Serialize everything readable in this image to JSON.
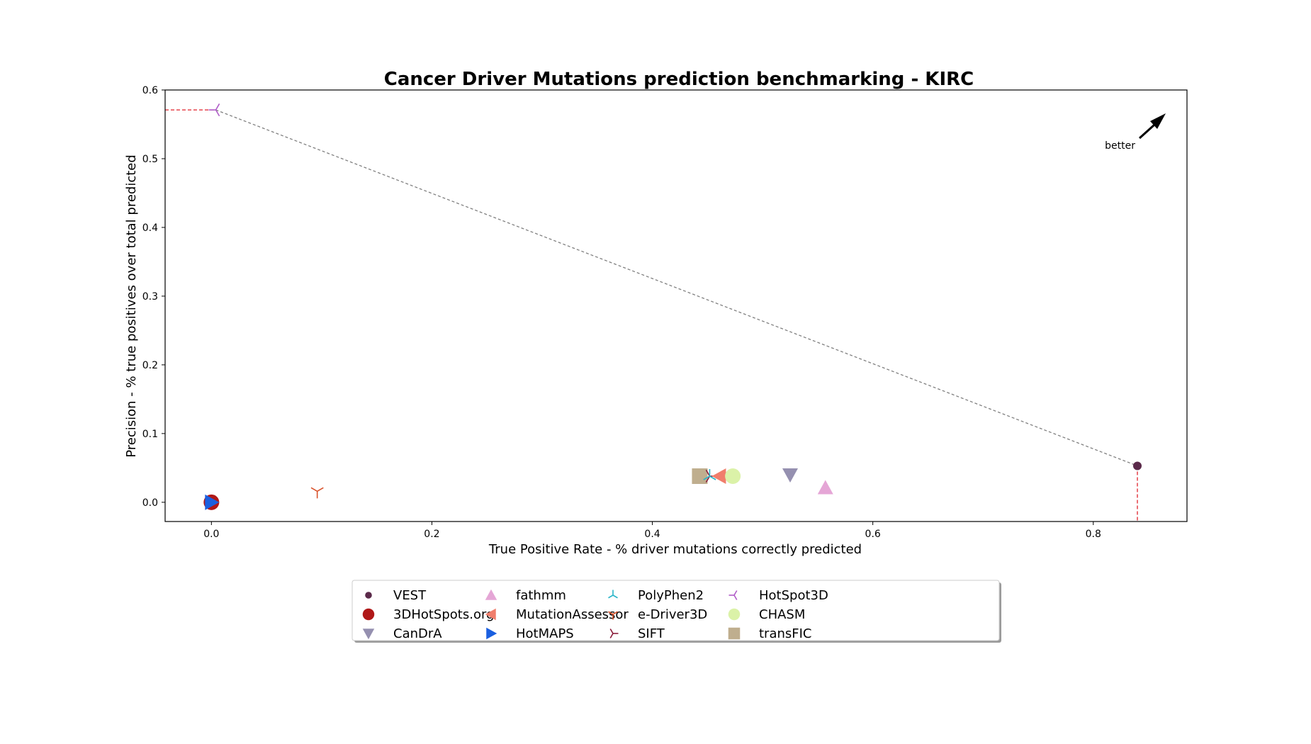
{
  "chart_data": {
    "type": "scatter",
    "title": "Cancer Driver Mutations prediction benchmarking - KIRC",
    "xlabel": "True Positive Rate - % driver mutations correctly predicted",
    "ylabel": "Precision - % true positives over total predicted",
    "xlim": [
      -0.042,
      0.885
    ],
    "ylim": [
      -0.028,
      0.6
    ],
    "xticks": [
      "0.0",
      "0.2",
      "0.4",
      "0.6",
      "0.8"
    ],
    "yticks": [
      "0.0",
      "0.1",
      "0.2",
      "0.3",
      "0.4",
      "0.5",
      "0.6"
    ],
    "grid": false,
    "legend_position": "below",
    "annotation": "better",
    "series": [
      {
        "name": "VEST",
        "x": 0.84,
        "y": 0.053,
        "color": "#5b2a4a",
        "marker": "circle-small"
      },
      {
        "name": "3DHotSpots.org",
        "x": 0.0,
        "y": 0.0,
        "color": "#b01818",
        "marker": "circle"
      },
      {
        "name": "CanDrA",
        "x": 0.525,
        "y": 0.04,
        "color": "#9590b0",
        "marker": "triangle-down"
      },
      {
        "name": "fathmm",
        "x": 0.557,
        "y": 0.021,
        "color": "#e5a6d6",
        "marker": "triangle-up"
      },
      {
        "name": "MutationAssessor",
        "x": 0.461,
        "y": 0.038,
        "color": "#f07e6c",
        "marker": "triangle-left"
      },
      {
        "name": "HotMAPS",
        "x": 0.0,
        "y": 0.0,
        "color": "#1a5fe0",
        "marker": "triangle-right"
      },
      {
        "name": "PolyPhen2",
        "x": 0.452,
        "y": 0.038,
        "color": "#2ab5c8",
        "marker": "tri-down"
      },
      {
        "name": "e-Driver3D",
        "x": 0.096,
        "y": 0.016,
        "color": "#d9532c",
        "marker": "tri-up"
      },
      {
        "name": "SIFT",
        "x": 0.452,
        "y": 0.038,
        "color": "#8a1c3a",
        "marker": "tri-left"
      },
      {
        "name": "HotSpot3D",
        "x": 0.004,
        "y": 0.571,
        "color": "#b05cc8",
        "marker": "tri-right"
      },
      {
        "name": "CHASM",
        "x": 0.473,
        "y": 0.038,
        "color": "#dbf2a8",
        "marker": "circle"
      },
      {
        "name": "transFIC",
        "x": 0.443,
        "y": 0.038,
        "color": "#bfae8e",
        "marker": "square"
      }
    ],
    "frontier": {
      "x": [
        0.004,
        0.84
      ],
      "y": [
        0.571,
        0.053
      ],
      "color": "#808080"
    },
    "marker_guides_color": "#e0202a"
  }
}
